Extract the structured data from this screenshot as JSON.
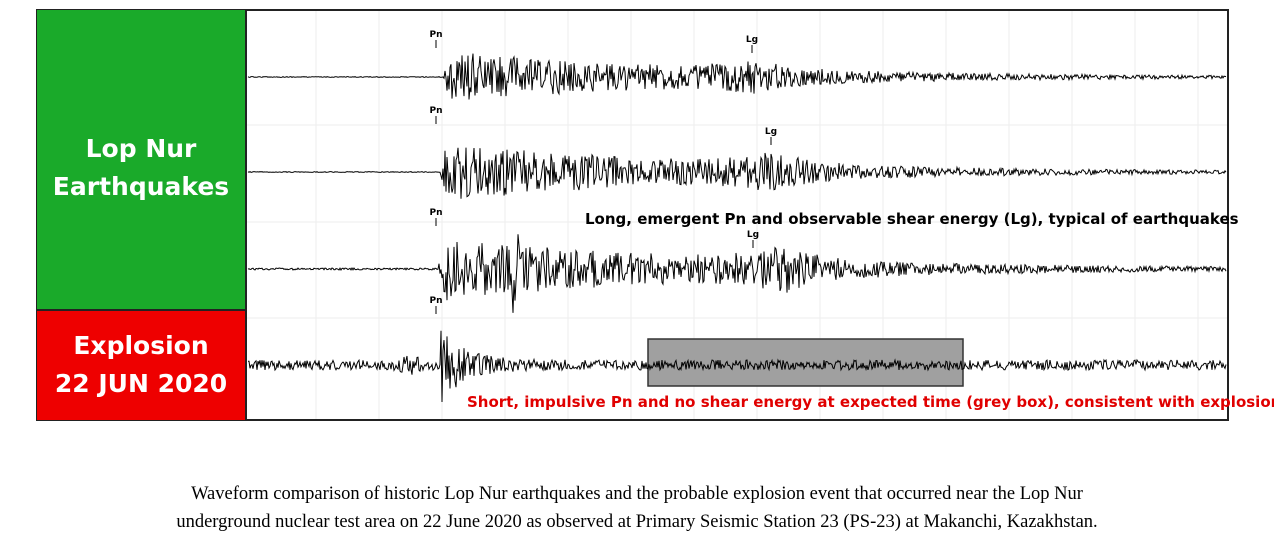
{
  "panels": {
    "earthquakes": {
      "lines": [
        "Lop Nur",
        "Earthquakes"
      ]
    },
    "explosion": {
      "lines": [
        "Explosion",
        "22 JUN 2020"
      ]
    }
  },
  "traces": [
    {
      "phases": [
        "Pn",
        "Lg"
      ]
    },
    {
      "phases": [
        "Pn",
        "Lg"
      ]
    },
    {
      "phases": [
        "Pn",
        "Lg"
      ]
    },
    {
      "phases": [
        "Pn"
      ]
    }
  ],
  "annotations": {
    "earthquake": "Long, emergent Pn and observable shear energy (Lg), typical of earthquakes",
    "explosion": "Short, impulsive Pn and no shear energy at expected time (grey box), consistent with explosion"
  },
  "caption": [
    "Waveform comparison of historic Lop Nur earthquakes and the probable explosion event that occurred near the Lop Nur",
    "underground nuclear test area on 22 June 2020 as observed at Primary Seismic Station 23 (PS-23) at Makanchi, Kazakhstan."
  ]
}
